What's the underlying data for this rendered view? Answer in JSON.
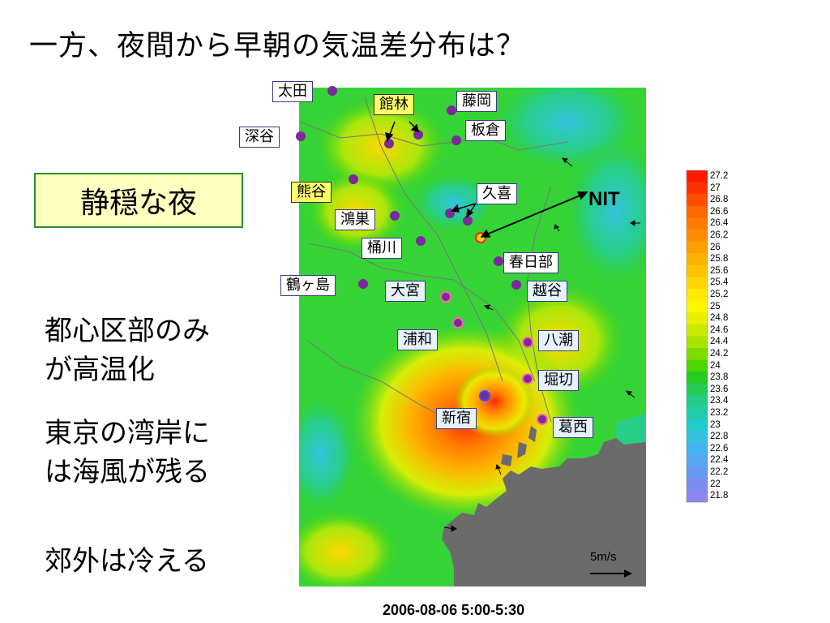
{
  "title": "一方、夜間から早朝の気温差分布は？",
  "condition_label": "静穏な夜",
  "notes": [
    {
      "lines": [
        "都心区部のみ",
        "が高温化"
      ]
    },
    {
      "lines": [
        "東京の湾岸に",
        "は海風が残る"
      ]
    },
    {
      "lines": [
        "郊外は冷える"
      ]
    }
  ],
  "nit_label": "NIT",
  "wind_scale_label": "5m/s",
  "timestamp": "2006-08-06 5:00-5:30",
  "colorbar": {
    "ticks": [
      "27.2",
      "27",
      "26.8",
      "26.6",
      "26.4",
      "26.2",
      "26",
      "25.8",
      "25.6",
      "25.4",
      "25.2",
      "25",
      "24.8",
      "24.6",
      "24.4",
      "24.2",
      "24",
      "23.8",
      "23.6",
      "23.4",
      "23.2",
      "23",
      "22.8",
      "22.6",
      "22.4",
      "22.2",
      "22",
      "21.8"
    ],
    "colors": [
      "#ff1a00",
      "#ff3300",
      "#ff4d00",
      "#ff6600",
      "#ff7a00",
      "#ff8c00",
      "#ff9f00",
      "#ffb300",
      "#ffc400",
      "#ffd700",
      "#ffea00",
      "#fff500",
      "#e8f000",
      "#c8eb00",
      "#a8e400",
      "#7fdc00",
      "#4ed600",
      "#22cc22",
      "#22cc55",
      "#22cc88",
      "#22ccaa",
      "#22cccc",
      "#33c3e0",
      "#44b3ee",
      "#55a6f0",
      "#6699f0",
      "#7a8cf0",
      "#8a88f0"
    ]
  },
  "stations": [
    {
      "name": "太田",
      "style": "plain"
    },
    {
      "name": "館林",
      "style": "yellow"
    },
    {
      "name": "藤岡",
      "style": "plain"
    },
    {
      "name": "深谷",
      "style": "plain"
    },
    {
      "name": "板倉",
      "style": "plain"
    },
    {
      "name": "熊谷",
      "style": "yellow"
    },
    {
      "name": "久喜",
      "style": "plain"
    },
    {
      "name": "鴻巣",
      "style": "plain"
    },
    {
      "name": "桶川",
      "style": "plain"
    },
    {
      "name": "春日部",
      "style": "plain"
    },
    {
      "name": "鶴ヶ島",
      "style": "plain"
    },
    {
      "name": "大宮",
      "style": "blue"
    },
    {
      "name": "越谷",
      "style": "blue"
    },
    {
      "name": "浦和",
      "style": "blue"
    },
    {
      "name": "八潮",
      "style": "blue"
    },
    {
      "name": "堀切",
      "style": "blue"
    },
    {
      "name": "新宿",
      "style": "blue"
    },
    {
      "name": "葛西",
      "style": "blue"
    }
  ],
  "colors": {
    "station_dot": "#7a2a9a",
    "nit_dot": "#ffd700",
    "bay": "#6b6b6b"
  }
}
